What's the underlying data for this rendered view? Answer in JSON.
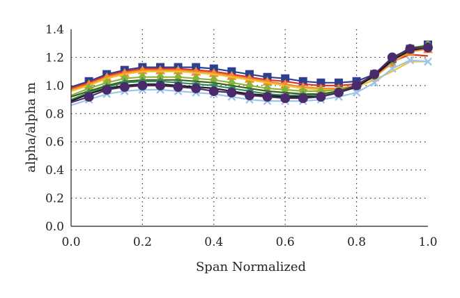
{
  "chart_data": {
    "type": "line",
    "xlabel": "Span Normalized",
    "ylabel": "alpha/alpha m",
    "xlim": [
      0,
      1
    ],
    "ylim": [
      0,
      1.4
    ],
    "xticks": [
      0,
      0.2,
      0.4,
      0.6,
      0.8,
      1.0
    ],
    "xtick_labels": [
      "0.0",
      "0.2",
      "0.4",
      "0.6",
      "0.8",
      "1.0"
    ],
    "yticks": [
      0,
      0.2,
      0.4,
      0.6,
      0.8,
      1.0,
      1.2,
      1.4
    ],
    "ytick_labels": [
      "0.0",
      "0.2",
      "0.4",
      "0.6",
      "0.8",
      "1.0",
      "1.2",
      "1.4"
    ],
    "grid": "dotted",
    "legend": "none",
    "x": [
      0,
      0.05,
      0.1,
      0.15,
      0.2,
      0.25,
      0.3,
      0.35,
      0.4,
      0.45,
      0.5,
      0.55,
      0.6,
      0.65,
      0.7,
      0.75,
      0.8,
      0.85,
      0.9,
      0.95,
      1.0
    ],
    "series": [
      {
        "color": "#2e3f8f",
        "marker": "square",
        "values": [
          0.99,
          1.03,
          1.08,
          1.11,
          1.13,
          1.13,
          1.13,
          1.13,
          1.12,
          1.1,
          1.08,
          1.06,
          1.05,
          1.03,
          1.02,
          1.02,
          1.03,
          1.08,
          1.19,
          1.26,
          1.29
        ]
      },
      {
        "color": "#d9342b",
        "marker": "none",
        "values": [
          0.98,
          1.02,
          1.07,
          1.1,
          1.12,
          1.12,
          1.12,
          1.11,
          1.1,
          1.08,
          1.06,
          1.04,
          1.03,
          1.01,
          1.0,
          1.0,
          1.01,
          1.07,
          1.17,
          1.22,
          1.21
        ]
      },
      {
        "color": "#f28a2e",
        "marker": "triangle",
        "values": [
          0.97,
          1.01,
          1.06,
          1.09,
          1.11,
          1.11,
          1.11,
          1.1,
          1.09,
          1.07,
          1.05,
          1.03,
          1.01,
          0.99,
          0.98,
          0.98,
          1.0,
          1.06,
          1.16,
          1.24,
          1.26
        ]
      },
      {
        "color": "#f2c230",
        "marker": "none",
        "values": [
          0.96,
          1.0,
          1.05,
          1.08,
          1.1,
          1.1,
          1.1,
          1.09,
          1.08,
          1.06,
          1.04,
          1.02,
          1.0,
          0.98,
          0.97,
          0.97,
          0.99,
          1.04,
          1.1,
          1.17,
          1.17
        ]
      },
      {
        "color": "#8ab33a",
        "marker": "diamond",
        "values": [
          0.93,
          0.98,
          1.02,
          1.05,
          1.06,
          1.06,
          1.06,
          1.05,
          1.04,
          1.02,
          1.0,
          0.98,
          0.97,
          0.96,
          0.96,
          0.97,
          1.0,
          1.07,
          1.18,
          1.26,
          1.29
        ]
      },
      {
        "color": "#3e5a1e",
        "marker": "none",
        "values": [
          0.92,
          0.96,
          1.0,
          1.03,
          1.04,
          1.04,
          1.04,
          1.03,
          1.02,
          1.0,
          0.98,
          0.96,
          0.95,
          0.94,
          0.94,
          0.96,
          1.0,
          1.08,
          1.19,
          1.27,
          1.28
        ]
      },
      {
        "color": "#2e8b57",
        "marker": "star",
        "values": [
          0.9,
          0.95,
          0.99,
          1.02,
          1.03,
          1.03,
          1.02,
          1.01,
          1.0,
          0.98,
          0.96,
          0.94,
          0.93,
          0.93,
          0.93,
          0.95,
          0.99,
          1.07,
          1.18,
          1.25,
          1.28
        ]
      },
      {
        "color": "#1a1a1a",
        "marker": "none",
        "values": [
          0.89,
          0.94,
          0.98,
          1.0,
          1.01,
          1.01,
          1.0,
          0.99,
          0.98,
          0.96,
          0.94,
          0.93,
          0.92,
          0.92,
          0.92,
          0.95,
          0.99,
          1.07,
          1.18,
          1.25,
          1.27
        ]
      },
      {
        "color": "#9ec5e8",
        "marker": "cross",
        "values": [
          0.86,
          0.9,
          0.94,
          0.96,
          0.97,
          0.97,
          0.96,
          0.95,
          0.94,
          0.92,
          0.9,
          0.89,
          0.89,
          0.89,
          0.9,
          0.92,
          0.95,
          1.02,
          1.12,
          1.18,
          1.17
        ]
      },
      {
        "color": "#4b2a6b",
        "marker": "circle",
        "values": [
          0.88,
          0.92,
          0.97,
          0.99,
          1.0,
          1.0,
          0.99,
          0.98,
          0.96,
          0.95,
          0.93,
          0.92,
          0.91,
          0.91,
          0.92,
          0.95,
          1.0,
          1.08,
          1.2,
          1.26,
          1.27
        ]
      }
    ]
  }
}
